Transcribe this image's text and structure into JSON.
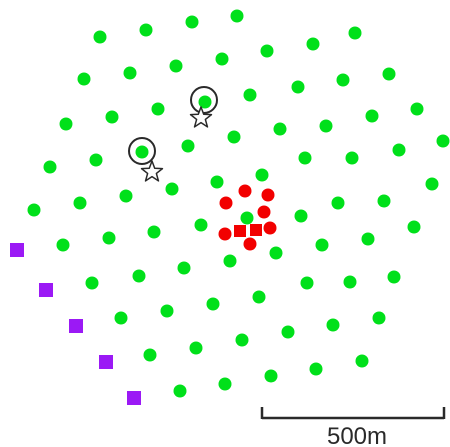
{
  "colors": {
    "green_station": "#00e01a",
    "red_station": "#f20000",
    "purple_marker": "#9b19f5",
    "outline": "#2a2a2a"
  },
  "icons": {
    "green_station": "circle",
    "red_station": "circle",
    "red_square": "square",
    "purple_marker": "square",
    "highlight": "ring",
    "star": "star-outline"
  },
  "scale_bar": {
    "label": "500m"
  }
}
